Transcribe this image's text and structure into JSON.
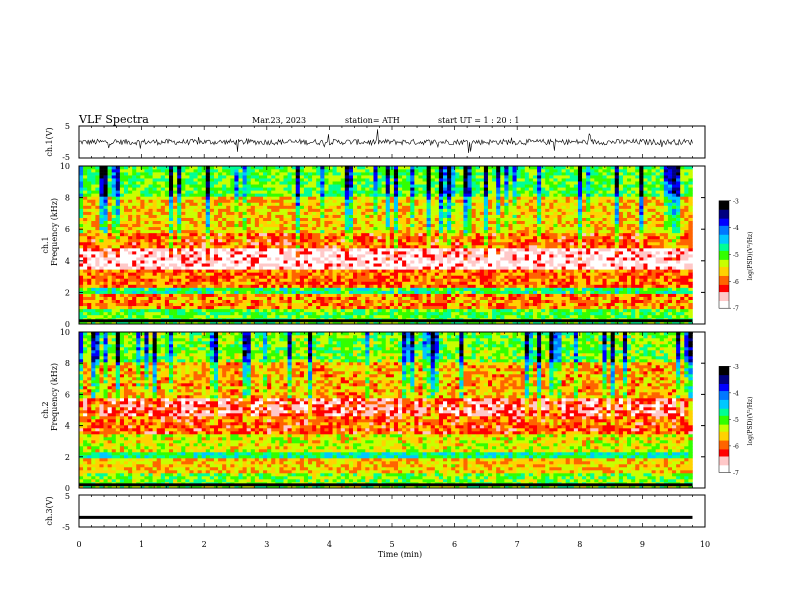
{
  "header": {
    "title": "VLF  Spectra",
    "date": "Mar.23, 2023",
    "station": "station= ATH",
    "start": "start  UT  =    1  : 20 : 1"
  },
  "colors": {
    "spectrogram_scale": [
      "#000000",
      "#000080",
      "#0000ff",
      "#0078ff",
      "#00c8ff",
      "#00ff96",
      "#32ff00",
      "#c8ff00",
      "#ffd200",
      "#ff6400",
      "#ff0000",
      "#ffc8c8",
      "#ffffff"
    ],
    "trace": "#000000"
  },
  "chart_data": [
    {
      "type": "line",
      "panel": "ch1-waveform",
      "ylabel": "ch.1(V)",
      "ylim": [
        -5,
        5
      ],
      "yticks": [
        "5",
        "-5"
      ],
      "x": [
        0,
        1,
        2,
        3,
        4,
        5,
        6,
        7,
        8,
        9,
        9.8
      ],
      "y_baseline": 0,
      "note_values": "noisy trace around 0 V with impulsive spikes"
    },
    {
      "type": "heatmap",
      "panel": "ch1-spectrogram",
      "ylabel_top": "ch.1",
      "ylabel": "Frequency  (kHz)",
      "ylim": [
        0,
        10
      ],
      "yticks": [
        "0",
        "2",
        "4",
        "6",
        "8",
        "10"
      ],
      "colorbar": {
        "label": "log(PSD)(V²/Hz)",
        "range": [
          -7,
          -3
        ],
        "ticks": [
          "-3",
          "-4",
          "-5",
          "-6",
          "-7"
        ]
      },
      "bands_khz": [
        {
          "from": 0,
          "to": 1.0,
          "level": -5.0
        },
        {
          "from": 1.0,
          "to": 2.0,
          "level": -5.8
        },
        {
          "from": 2.0,
          "to": 2.4,
          "level": -4.8
        },
        {
          "from": 2.4,
          "to": 3.5,
          "level": -5.9
        },
        {
          "from": 3.5,
          "to": 4.9,
          "level": -6.7
        },
        {
          "from": 4.9,
          "to": 5.8,
          "level": -6.0
        },
        {
          "from": 5.8,
          "to": 8.0,
          "level": -5.6
        },
        {
          "from": 8.0,
          "to": 10.0,
          "level": -5.0
        }
      ]
    },
    {
      "type": "heatmap",
      "panel": "ch2-spectrogram",
      "ylabel_top": "ch.2",
      "ylabel": "Frequency  (kHz)",
      "ylim": [
        0,
        10
      ],
      "yticks": [
        "0",
        "2",
        "4",
        "6",
        "8",
        "10"
      ],
      "colorbar": {
        "label": "log(PSD)(V²/Hz)",
        "range": [
          -7,
          -3
        ],
        "ticks": [
          "-3",
          "-4",
          "-5",
          "-6",
          "-7"
        ]
      },
      "bands_khz": [
        {
          "from": 0,
          "to": 1.0,
          "level": -5.1
        },
        {
          "from": 1.0,
          "to": 2.0,
          "level": -5.6
        },
        {
          "from": 2.0,
          "to": 2.3,
          "level": -4.7
        },
        {
          "from": 2.3,
          "to": 3.5,
          "level": -5.4
        },
        {
          "from": 3.5,
          "to": 4.6,
          "level": -6.0
        },
        {
          "from": 4.6,
          "to": 5.8,
          "level": -6.4
        },
        {
          "from": 5.8,
          "to": 8.0,
          "level": -5.7
        },
        {
          "from": 8.0,
          "to": 10.0,
          "level": -5.1
        }
      ]
    },
    {
      "type": "line",
      "panel": "ch3-waveform",
      "ylabel": "ch.3(V)",
      "ylim": [
        -5,
        5
      ],
      "yticks": [
        "5",
        "-5"
      ],
      "x": [
        0,
        9.8
      ],
      "y": [
        -2,
        -2
      ]
    }
  ],
  "x_axis": {
    "label": "Time  (min)",
    "xlim": [
      0,
      10
    ],
    "ticks": [
      "0",
      "1",
      "2",
      "3",
      "4",
      "5",
      "6",
      "7",
      "8",
      "9",
      "10"
    ]
  }
}
